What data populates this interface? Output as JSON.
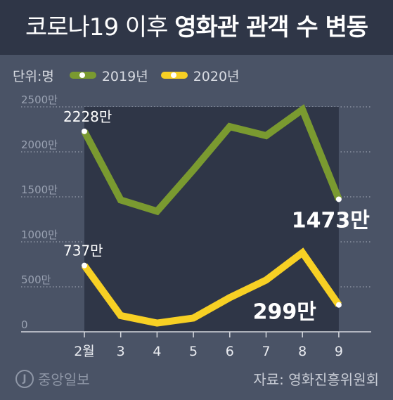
{
  "title": {
    "lead": "코로나19 이후",
    "bold": "영화관 관객 수 변동"
  },
  "legend": {
    "unit": "단위:명"
  },
  "colors": {
    "series2019": "#7a9a30",
    "series2020": "#f7d024",
    "band": "#2f3647"
  },
  "chart_data": {
    "type": "line",
    "title": "코로나19 이후 영화관 관객 수 변동",
    "categories": [
      "2월",
      "3",
      "4",
      "5",
      "6",
      "7",
      "8",
      "9"
    ],
    "y_tick_labels": [
      "0",
      "500만",
      "1000만",
      "1500만",
      "2000만",
      "2500만"
    ],
    "y_ticks": [
      0,
      500,
      1000,
      1500,
      2000,
      2500
    ],
    "ylim": [
      0,
      2500
    ],
    "y_unit": "만",
    "series": [
      {
        "name": "2019년",
        "values": [
          2228,
          1465,
          1340,
          1800,
          2280,
          2180,
          2470,
          1473
        ]
      },
      {
        "name": "2020년",
        "values": [
          737,
          180,
          97,
          153,
          380,
          575,
          880,
          299
        ]
      }
    ],
    "annotations": {
      "start2019": "2228만",
      "end2019": "1473만",
      "start2020": "737만",
      "end2020": "299만"
    },
    "grid": true
  },
  "footer": {
    "logo": "중앙일보",
    "logo_mark": "J",
    "source": "자료: 영화진흥위원회"
  }
}
